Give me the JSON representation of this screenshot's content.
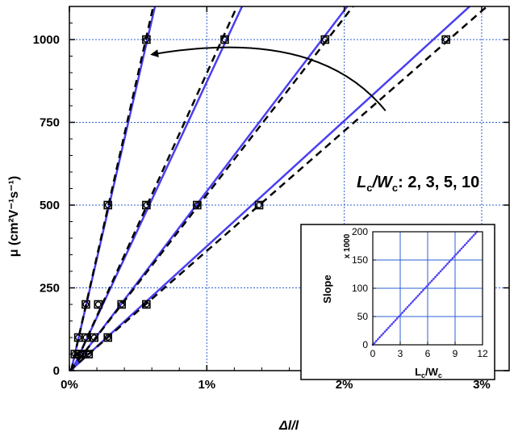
{
  "chart_data": [
    {
      "type": "scatter",
      "xlabel": "Δl/l",
      "ylabel": "μ (cm²V⁻¹s⁻¹)",
      "xlim": [
        0,
        3.2
      ],
      "ylim": [
        0,
        1100
      ],
      "x_unit": "%",
      "x_ticks": [
        0,
        1,
        2,
        3
      ],
      "x_tick_labels": [
        "0%",
        "1%",
        "2%",
        "3%"
      ],
      "y_ticks": [
        0,
        250,
        500,
        750,
        1000
      ],
      "y_tick_labels": [
        "0",
        "250",
        "500",
        "750",
        "1000"
      ],
      "grid": true,
      "grid_color": "#2b5fd6",
      "annotation": {
        "text_main": "L",
        "sub1": "c",
        "mid": "/W",
        "sub2": "c",
        "tail": ": 2, 3, 5, 10"
      },
      "arrow": {
        "from": [
          2.3,
          785
        ],
        "to": [
          0.6,
          955
        ]
      },
      "series": [
        {
          "mu": [
            50,
            100,
            200,
            500,
            1000
          ],
          "x": [
            0.04,
            0.065,
            0.12,
            0.28,
            0.56
          ],
          "solid_slope_pct": 0.000555,
          "dashed_slope_pct": 0.000543
        },
        {
          "mu": [
            50,
            100,
            200,
            500,
            1000
          ],
          "x": [
            0.075,
            0.12,
            0.21,
            0.56,
            1.13
          ],
          "solid_slope_pct": 0.001125,
          "dashed_slope_pct": 0.00109
        },
        {
          "mu": [
            50,
            100,
            200,
            500,
            1000
          ],
          "x": [
            0.1,
            0.18,
            0.38,
            0.93,
            1.86
          ],
          "solid_slope_pct": 0.00183,
          "dashed_slope_pct": 0.00187
        },
        {
          "mu": [
            50,
            100,
            200,
            500,
            1000
          ],
          "x": [
            0.14,
            0.28,
            0.56,
            1.38,
            2.74
          ],
          "solid_slope_pct": 0.00264,
          "dashed_slope_pct": 0.00276
        }
      ],
      "colors": {
        "solid_line": "#4a3ff0",
        "dashed_line": "#000000",
        "marker": "#000000"
      }
    },
    {
      "type": "line",
      "xlabel": "L_c/W_c",
      "ylabel": "Slope",
      "y_multiplier": "x 1000",
      "xlim": [
        0,
        12
      ],
      "ylim": [
        0,
        200
      ],
      "x_ticks": [
        0,
        3,
        6,
        9,
        12
      ],
      "y_ticks": [
        0,
        50,
        100,
        150,
        200
      ],
      "grid": true,
      "line": {
        "x": [
          0,
          11.4
        ],
        "y": [
          0,
          200
        ]
      },
      "color": "#4a3ff0"
    }
  ]
}
